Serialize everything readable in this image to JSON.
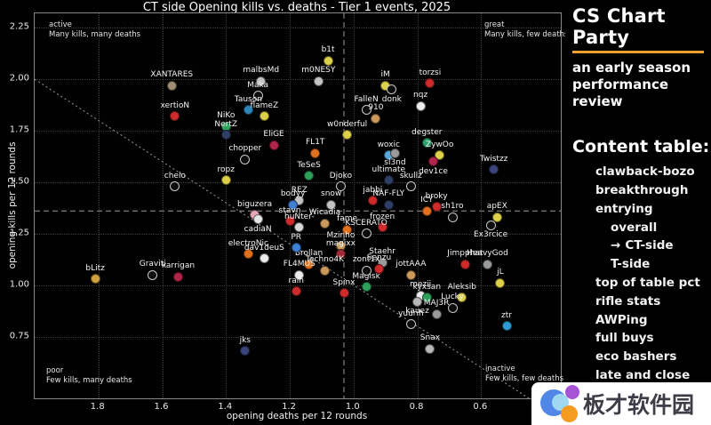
{
  "accent_orange": "#f0a033",
  "chart_data": {
    "type": "scatter",
    "title": "CT side Opening kills vs. deaths - Tier 1 events, 2025",
    "xlabel": "opening deaths per 12 rounds",
    "ylabel": "opening kills per 12 rounds",
    "x_reversed": true,
    "xlim": [
      2.0,
      0.35
    ],
    "ylim": [
      0.45,
      2.32
    ],
    "x_ticks": [
      "1.8",
      "1.6",
      "1.4",
      "1.2",
      "1.0",
      "0.8",
      "0.6"
    ],
    "y_ticks": [
      "0.75",
      "1.00",
      "1.25",
      "1.50",
      "1.75",
      "2.00",
      "2.25"
    ],
    "grid": "dotted",
    "mean_lines": {
      "x": 1.03,
      "y": 1.36
    },
    "identity_line": {
      "from": 2.0,
      "to": 0.45
    },
    "quadrants": {
      "top_left": {
        "name": "active",
        "desc": "Many kills, many deaths"
      },
      "top_right": {
        "name": "great",
        "desc": "Many kills, few deaths"
      },
      "bottom_left": {
        "name": "poor",
        "desc": "Few kills, many deaths"
      },
      "bottom_right": {
        "name": "inactive",
        "desc": "Few kills, few deaths"
      }
    },
    "points": [
      {
        "label": "XANTARES",
        "x": 1.57,
        "y": 1.97,
        "c": "#a08f72"
      },
      {
        "label": "malbsMd",
        "x": 1.29,
        "y": 1.99,
        "c": "#c4c4c4"
      },
      {
        "label": "b1t",
        "x": 1.08,
        "y": 2.09,
        "c": "#ddd04a"
      },
      {
        "label": "m0NESY",
        "x": 1.11,
        "y": 1.99,
        "c": "#c4c4c4"
      },
      {
        "label": "iM",
        "x": 0.9,
        "y": 1.97,
        "c": "#ddd04a"
      },
      {
        "label": "donk",
        "x": 0.88,
        "y": 1.95,
        "o": true,
        "lp": "b"
      },
      {
        "label": "torzsi",
        "x": 0.76,
        "y": 1.98,
        "c": "#cf2b2b"
      },
      {
        "label": "Maka",
        "x": 1.3,
        "y": 1.92,
        "o": true
      },
      {
        "label": "Tauson",
        "x": 1.33,
        "y": 1.85,
        "c": "#2e86b8"
      },
      {
        "label": "flameZ",
        "x": 1.28,
        "y": 1.82,
        "c": "#ddd04a"
      },
      {
        "label": "NiKo",
        "x": 1.4,
        "y": 1.77,
        "c": "#2fa05c"
      },
      {
        "label": "NertZ",
        "x": 1.4,
        "y": 1.73,
        "c": "#2f3f66"
      },
      {
        "label": "FalleN",
        "x": 0.96,
        "y": 1.85,
        "o": true
      },
      {
        "label": "910",
        "x": 0.93,
        "y": 1.81,
        "c": "#c99a5b"
      },
      {
        "label": "nqz",
        "x": 0.79,
        "y": 1.87,
        "c": "#ececec"
      },
      {
        "label": "EliGE",
        "x": 1.25,
        "y": 1.68,
        "c": "#b3244a"
      },
      {
        "label": "xertioN",
        "x": 1.56,
        "y": 1.82,
        "c": "#cf2b2b"
      },
      {
        "label": "chopper",
        "x": 1.34,
        "y": 1.61,
        "o": true
      },
      {
        "label": "ropz",
        "x": 1.4,
        "y": 1.51,
        "c": "#ddd04a"
      },
      {
        "label": "chelo",
        "x": 1.56,
        "y": 1.48,
        "o": true
      },
      {
        "label": "FL1T",
        "x": 1.12,
        "y": 1.64,
        "c": "#e2711d"
      },
      {
        "label": "TeSeS",
        "x": 1.14,
        "y": 1.53,
        "c": "#2fa05c"
      },
      {
        "label": "w0nderful",
        "x": 1.02,
        "y": 1.73,
        "c": "#ddd04a"
      },
      {
        "label": "woxic",
        "x": 0.89,
        "y": 1.63,
        "c": "#58a8dc"
      },
      {
        "label": "sl3nd",
        "x": 0.87,
        "y": 1.64,
        "c": "#9a9a9a",
        "lp": "b"
      },
      {
        "label": "degster",
        "x": 0.77,
        "y": 1.69,
        "c": "#2aa36b"
      },
      {
        "label": "ZywOo",
        "x": 0.73,
        "y": 1.63,
        "c": "#ddd04a"
      },
      {
        "label": "dev1ce",
        "x": 0.75,
        "y": 1.6,
        "c": "#b3244a",
        "lp": "b"
      },
      {
        "label": "Twistzz",
        "x": 0.56,
        "y": 1.56,
        "c": "#39457a"
      },
      {
        "label": "Djoko",
        "x": 1.04,
        "y": 1.48,
        "o": true
      },
      {
        "label": "ultimate",
        "x": 0.89,
        "y": 1.51,
        "c": "#2f3f66"
      },
      {
        "label": "skullz",
        "x": 0.82,
        "y": 1.48,
        "o": true
      },
      {
        "label": "REZ",
        "x": 1.17,
        "y": 1.41,
        "c": "#c4c4c4"
      },
      {
        "label": "bodyy",
        "x": 1.19,
        "y": 1.39,
        "c": "#3f7fd4"
      },
      {
        "label": "snow",
        "x": 1.07,
        "y": 1.39,
        "c": "#c4c4c4"
      },
      {
        "label": "jabbi",
        "x": 0.94,
        "y": 1.41,
        "c": "#cf2b2b"
      },
      {
        "label": "NAF-FLY",
        "x": 0.89,
        "y": 1.39,
        "c": "#2f3f66"
      },
      {
        "label": "broky",
        "x": 0.74,
        "y": 1.38,
        "c": "#cf2b2b"
      },
      {
        "label": "ICY",
        "x": 0.77,
        "y": 1.36,
        "c": "#e2711d"
      },
      {
        "label": "sh1ro",
        "x": 0.69,
        "y": 1.33,
        "o": true
      },
      {
        "label": "apEX",
        "x": 0.55,
        "y": 1.33,
        "c": "#ddd04a"
      },
      {
        "label": "Ex3rcice",
        "x": 0.57,
        "y": 1.29,
        "o": true,
        "lp": "b"
      },
      {
        "label": "biguzera",
        "x": 1.31,
        "y": 1.34,
        "c": "#e9a6b7"
      },
      {
        "label": "cadiaN",
        "x": 1.3,
        "y": 1.32,
        "c": "#e6e6e6",
        "lp": "b"
      },
      {
        "label": "stavn",
        "x": 1.2,
        "y": 1.31,
        "c": "#cf2b2b"
      },
      {
        "label": "huNter-",
        "x": 1.17,
        "y": 1.28,
        "c": "#d8d8d8"
      },
      {
        "label": "Wicadia",
        "x": 1.09,
        "y": 1.3,
        "c": "#c99a5b"
      },
      {
        "label": "electroNic",
        "x": 1.33,
        "y": 1.15,
        "c": "#e2711d"
      },
      {
        "label": "dav1deuS",
        "x": 1.28,
        "y": 1.13,
        "c": "#ececec"
      },
      {
        "label": "fame",
        "x": 1.02,
        "y": 1.27,
        "c": "#e2711d"
      },
      {
        "label": "frozen",
        "x": 0.91,
        "y": 1.28,
        "c": "#cf2b2b"
      },
      {
        "label": "KSCERATO",
        "x": 0.96,
        "y": 1.25,
        "o": true
      },
      {
        "label": "Mzinho",
        "x": 1.04,
        "y": 1.19,
        "c": "#c99a5b"
      },
      {
        "label": "magixx",
        "x": 1.04,
        "y": 1.15,
        "c": "#a02a35"
      },
      {
        "label": "Brollan",
        "x": 1.14,
        "y": 1.1,
        "c": "#e2711d"
      },
      {
        "label": "Techno4K",
        "x": 1.09,
        "y": 1.07,
        "c": "#c99a5b"
      },
      {
        "label": "FL4MUS",
        "x": 1.17,
        "y": 1.05,
        "c": "#ececec"
      },
      {
        "label": "PR",
        "x": 1.18,
        "y": 1.18,
        "c": "#3f7fd4"
      },
      {
        "label": "rain",
        "x": 1.18,
        "y": 0.97,
        "c": "#cf2b2b"
      },
      {
        "label": "Spinx",
        "x": 1.03,
        "y": 0.96,
        "c": "#cf2b2b"
      },
      {
        "label": "Magisk",
        "x": 0.96,
        "y": 0.99,
        "c": "#2fa05c"
      },
      {
        "label": "Staehr",
        "x": 0.91,
        "y": 1.11,
        "c": "#9a9a9a"
      },
      {
        "label": "Senzu",
        "x": 0.92,
        "y": 1.08,
        "c": "#cf2b2b"
      },
      {
        "label": "zont1x",
        "x": 0.96,
        "y": 1.07,
        "o": true
      },
      {
        "label": "jottAAA",
        "x": 0.82,
        "y": 1.05,
        "c": "#c99a5b"
      },
      {
        "label": "mezii",
        "x": 0.79,
        "y": 0.95,
        "c": "#ececec"
      },
      {
        "label": "kyxsan",
        "x": 0.77,
        "y": 0.94,
        "c": "#2fa05c"
      },
      {
        "label": "kauez",
        "x": 0.8,
        "y": 0.92,
        "c": "#b9b9b9",
        "lp": "b"
      },
      {
        "label": "Jimpphat",
        "x": 0.65,
        "y": 1.1,
        "c": "#cf2b2b"
      },
      {
        "label": "HeavyGod",
        "x": 0.58,
        "y": 1.1,
        "c": "#9a9a9a"
      },
      {
        "label": "jL",
        "x": 0.54,
        "y": 1.01,
        "c": "#ddd04a"
      },
      {
        "label": "Aleksib",
        "x": 0.66,
        "y": 0.94,
        "c": "#ddd04a"
      },
      {
        "label": "Lucky",
        "x": 0.69,
        "y": 0.89,
        "o": true
      },
      {
        "label": "MAJ3R",
        "x": 0.74,
        "y": 0.86,
        "c": "#9a9a9a"
      },
      {
        "label": "yuurih",
        "x": 0.82,
        "y": 0.81,
        "o": true
      },
      {
        "label": "Snax",
        "x": 0.76,
        "y": 0.69,
        "c": "#b9b9b9"
      },
      {
        "label": "ztr",
        "x": 0.52,
        "y": 0.8,
        "c": "#2f9bd6"
      },
      {
        "label": "bLitz",
        "x": 1.81,
        "y": 1.03,
        "c": "#cfa13f"
      },
      {
        "label": "Graviti",
        "x": 1.63,
        "y": 1.05,
        "o": true
      },
      {
        "label": "karrigan",
        "x": 1.55,
        "y": 1.04,
        "c": "#b3244a"
      },
      {
        "label": "jks",
        "x": 1.34,
        "y": 0.68,
        "c": "#39457a"
      }
    ]
  },
  "sidebar": {
    "title": "CS Chart Party",
    "subtitle": "an early season performance review",
    "content_table": {
      "heading": "Content table:",
      "items": [
        {
          "label": "clawback-bozo",
          "indent": 0
        },
        {
          "label": "breakthrough",
          "indent": 0
        },
        {
          "label": "entrying",
          "indent": 0
        },
        {
          "label": "overall",
          "indent": 1
        },
        {
          "label": "CT-side",
          "indent": 1,
          "active": true,
          "arrow": "→"
        },
        {
          "label": "T-side",
          "indent": 1
        },
        {
          "label": "top of table pct",
          "indent": 0
        },
        {
          "label": "rifle stats",
          "indent": 0
        },
        {
          "label": "AWPing",
          "indent": 0
        },
        {
          "label": "full buys",
          "indent": 0
        },
        {
          "label": "eco bashers",
          "indent": 0
        },
        {
          "label": "late and close",
          "indent": 0
        }
      ]
    }
  },
  "watermark": {
    "text": "板才软件园",
    "logo_colors": {
      "blue": "#5188e8",
      "light_blue": "#9fd8f0",
      "purple": "#a653d6",
      "orange": "#f59b20"
    }
  }
}
